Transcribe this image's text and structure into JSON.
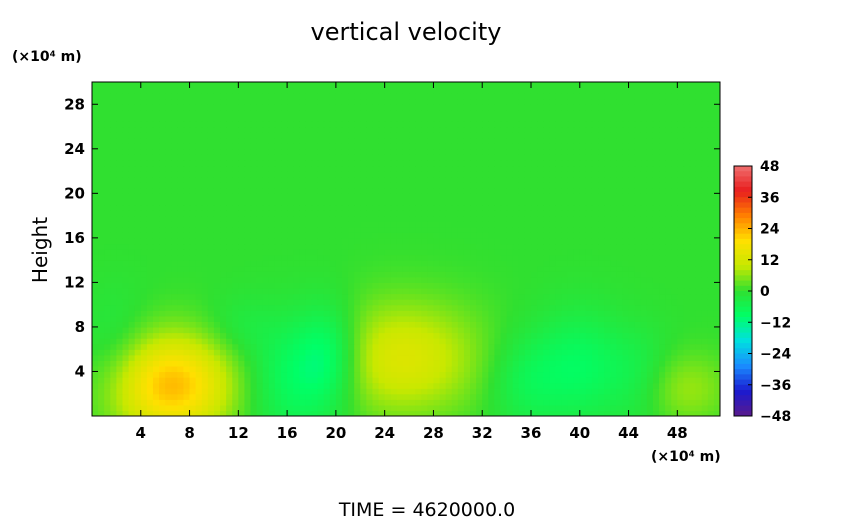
{
  "chart_data": {
    "type": "heatmap",
    "title": "vertical velocity",
    "ylabel": "Height",
    "x_unit": "(×10⁴ m)",
    "y_unit": "(×10⁴ m)",
    "xlim": [
      0,
      51.5
    ],
    "ylim": [
      0,
      30
    ],
    "x_ticks": [
      4,
      8,
      12,
      16,
      20,
      24,
      28,
      32,
      36,
      40,
      44,
      48
    ],
    "y_ticks": [
      4,
      8,
      12,
      16,
      20,
      24,
      28
    ],
    "colorbar": {
      "min": -48,
      "max": 48,
      "tick_values": [
        48,
        36,
        24,
        12,
        0,
        -12,
        -24,
        -36,
        -48
      ],
      "tick_labels": [
        "48",
        "36",
        "24",
        "12",
        "0",
        "−12",
        "−24",
        "−36",
        "−48"
      ],
      "colors": [
        "#5a1a8c",
        "#1a1ad0",
        "#1a8cff",
        "#00e0e0",
        "#00ff66",
        "#30e030",
        "#c8e800",
        "#ffe000",
        "#ff8000",
        "#e81e1e",
        "#f07070"
      ]
    },
    "background_value": 0,
    "features": [
      {
        "x": 6.5,
        "y": 2.8,
        "amp": 23,
        "sx": 3.5,
        "sy": 3.2
      },
      {
        "x": 25.5,
        "y": 5.2,
        "amp": 13,
        "sx": 4.5,
        "sy": 3.6
      },
      {
        "x": 48.5,
        "y": 2.5,
        "amp": 7,
        "sx": 2.6,
        "sy": 2.3
      },
      {
        "x": 16.5,
        "y": 3.5,
        "amp": -9,
        "sx": 2.6,
        "sy": 3.8
      },
      {
        "x": 19.5,
        "y": 5.5,
        "amp": -10,
        "sx": 1.8,
        "sy": 3.2
      },
      {
        "x": 35.5,
        "y": 3.2,
        "amp": -6,
        "sx": 2.2,
        "sy": 3.0
      },
      {
        "x": 40,
        "y": 4.5,
        "amp": -8,
        "sx": 2.5,
        "sy": 3.5
      },
      {
        "x": 45,
        "y": 3.5,
        "amp": -5,
        "sx": 2.0,
        "sy": 3.0
      },
      {
        "x": 2,
        "y": 6,
        "amp": -4,
        "sx": 2.0,
        "sy": 3.5
      },
      {
        "x": 12,
        "y": 8,
        "amp": -3,
        "sx": 2.0,
        "sy": 2.0
      }
    ]
  },
  "footer": {
    "time_label": "TIME",
    "equals": "=",
    "time_value": "4620000.0"
  }
}
